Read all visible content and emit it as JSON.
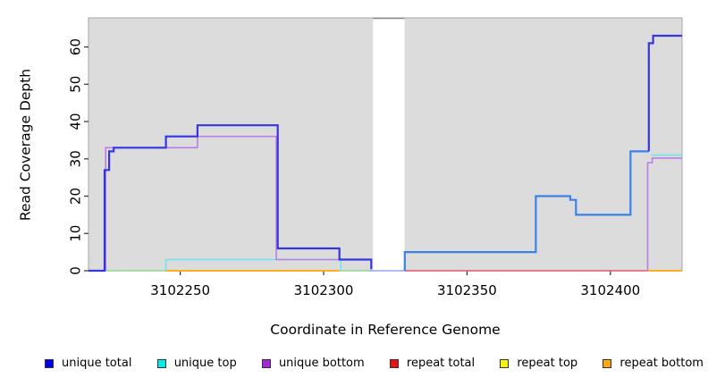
{
  "chart_data": {
    "type": "line",
    "title": "",
    "xlabel": "Coordinate in Reference Genome",
    "ylabel": "Read Coverage Depth",
    "xlim": [
      3102218,
      3102425
    ],
    "ylim": [
      0,
      67.8
    ],
    "x_ticks": [
      3102250,
      3102300,
      3102350,
      3102400
    ],
    "y_ticks": [
      0,
      10,
      20,
      30,
      40,
      50,
      60
    ],
    "grid": false,
    "legend_position": "bottom",
    "panel_bg": "#dcdcdc",
    "panel_border": "#a6a6a6",
    "gap_region": {
      "from": 3102317.2,
      "to": 3102328.2,
      "fill": "#ffffff",
      "top_border": "#8c8c8c"
    },
    "series": [
      {
        "name": "top-strands-overlap-baseline-left",
        "color": "#8fd68f",
        "width": 1.6,
        "points": [
          [
            3102224,
            0
          ],
          [
            3102245,
            0
          ]
        ]
      },
      {
        "name": "top-strands-overlap-baseline-mid",
        "color": "#8fd68f",
        "width": 1.6,
        "points": [
          [
            3102305.5,
            0
          ],
          [
            3102317.3,
            0
          ]
        ]
      },
      {
        "name": "baseline-through-gap",
        "color": "#9fa0f0",
        "width": 1.6,
        "points": [
          [
            3102316,
            0
          ],
          [
            3102329,
            0
          ]
        ]
      },
      {
        "name": "repeat-bottom-baseline-left",
        "color": "#ffa500",
        "width": 1.8,
        "points": [
          [
            3102245,
            0
          ],
          [
            3102305.5,
            0
          ]
        ]
      },
      {
        "name": "repeat-bottom-baseline-right",
        "color": "#ffa500",
        "width": 1.8,
        "points": [
          [
            3102413,
            0
          ],
          [
            3102425,
            0
          ]
        ]
      },
      {
        "name": "repeat-total-baseline",
        "color": "#e0566f",
        "width": 1.6,
        "points": [
          [
            3102328.3,
            0
          ],
          [
            3102413,
            0
          ]
        ]
      },
      {
        "name": "unique-top-left",
        "color": "#6ce6ec",
        "width": 1.6,
        "points": [
          [
            3102245,
            0
          ],
          [
            3102245,
            3
          ],
          [
            3102306,
            3
          ],
          [
            3102306,
            0
          ]
        ]
      },
      {
        "name": "unique-top-right",
        "color": "#6ce6ec",
        "width": 1.6,
        "points": [
          [
            3102414.3,
            31
          ],
          [
            3102425,
            31
          ]
        ]
      },
      {
        "name": "unique-bottom-left",
        "color": "#b97fe3",
        "width": 1.6,
        "points": [
          [
            3102224,
            0
          ],
          [
            3102224,
            33
          ],
          [
            3102256,
            33
          ],
          [
            3102256,
            36
          ],
          [
            3102283.5,
            36
          ],
          [
            3102283.5,
            3
          ],
          [
            3102316.5,
            3
          ]
        ]
      },
      {
        "name": "unique-bottom-right",
        "color": "#b97fe3",
        "width": 1.6,
        "points": [
          [
            3102413,
            0
          ],
          [
            3102413,
            29
          ],
          [
            3102414.6,
            29
          ],
          [
            3102414.6,
            30.2
          ],
          [
            3102425,
            30.2
          ]
        ]
      },
      {
        "name": "unique-total-after-gap",
        "color": "#3b82e8",
        "width": 2.2,
        "points": [
          [
            3102328.3,
            0
          ],
          [
            3102328.3,
            5
          ],
          [
            3102374,
            5
          ],
          [
            3102374,
            20
          ],
          [
            3102386,
            20
          ],
          [
            3102386,
            19
          ],
          [
            3102388,
            19
          ],
          [
            3102388,
            15
          ],
          [
            3102407,
            15
          ],
          [
            3102407,
            32
          ],
          [
            3102413.4,
            32
          ]
        ]
      },
      {
        "name": "unique-total-left",
        "color": "#3535e3",
        "width": 2.2,
        "points": [
          [
            3102218,
            0
          ],
          [
            3102223.6,
            0
          ],
          [
            3102223.6,
            27
          ],
          [
            3102225.2,
            27
          ],
          [
            3102225.2,
            32
          ],
          [
            3102226.8,
            32
          ],
          [
            3102226.8,
            33
          ],
          [
            3102245,
            33
          ],
          [
            3102245,
            36
          ],
          [
            3102256,
            36
          ],
          [
            3102256,
            39
          ],
          [
            3102284,
            39
          ],
          [
            3102284,
            6
          ],
          [
            3102305.5,
            6
          ],
          [
            3102305.5,
            3
          ],
          [
            3102316.6,
            3
          ],
          [
            3102316.6,
            0.4
          ]
        ]
      },
      {
        "name": "unique-total-right-peak",
        "color": "#3535e3",
        "width": 2.2,
        "points": [
          [
            3102413.4,
            32
          ],
          [
            3102413.4,
            61
          ],
          [
            3102414.9,
            61
          ],
          [
            3102414.9,
            63
          ],
          [
            3102425,
            63
          ]
        ]
      }
    ]
  },
  "legend": {
    "items": [
      {
        "label": "unique total",
        "color": "#0000ee"
      },
      {
        "label": "unique top",
        "color": "#00eeee"
      },
      {
        "label": "unique bottom",
        "color": "#a228d8"
      },
      {
        "label": "repeat total",
        "color": "#ee1111"
      },
      {
        "label": "repeat top",
        "color": "#f2f20a"
      },
      {
        "label": "repeat bottom",
        "color": "#ffa510"
      }
    ]
  }
}
